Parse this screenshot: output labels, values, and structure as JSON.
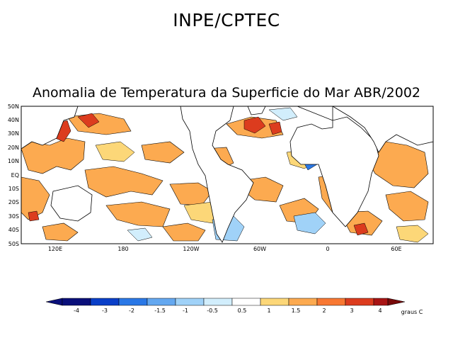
{
  "header": {
    "organization": "INPE/CPTEC",
    "title": "Anomalia de Temperatura da Superficie do Mar ABR/2002"
  },
  "map": {
    "lat_labels": [
      "50N",
      "40N",
      "30N",
      "20N",
      "10N",
      "EQ",
      "10S",
      "20S",
      "30S",
      "40S",
      "50S"
    ],
    "lon_labels": [
      "120E",
      "180",
      "120W",
      "60W",
      "0",
      "60E"
    ]
  },
  "legend": {
    "unit": "graus C",
    "ticks": [
      "-4",
      "-3",
      "-2",
      "-1.5",
      "-1",
      "-0.5",
      "0.5",
      "1",
      "1.5",
      "2",
      "3",
      "4"
    ],
    "colors": [
      "#0a0f7a",
      "#0a3fc8",
      "#2a78e6",
      "#64a8f0",
      "#a0d2f8",
      "#d2eefc",
      "#ffffff",
      "#fcd778",
      "#fcaa50",
      "#f87832",
      "#dc3c1e",
      "#a81414",
      "#780a0a"
    ]
  }
}
